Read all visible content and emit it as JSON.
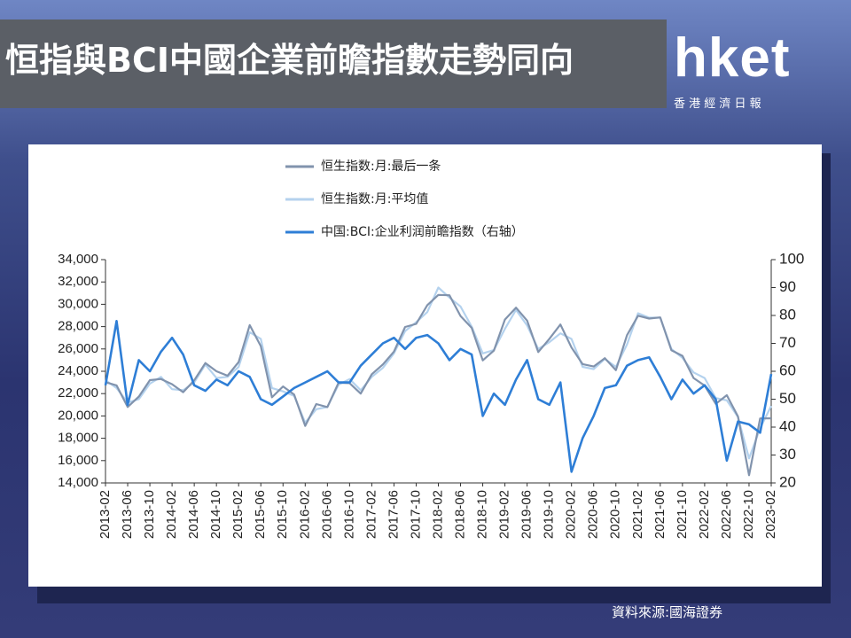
{
  "header": {
    "title": "恒指與BCI中國企業前瞻指數走勢同向",
    "logo": "hket",
    "logo_sub": "香 港 經 濟 日 報"
  },
  "source": "資料來源:國海證券",
  "chart_data": {
    "type": "line",
    "categories": [
      "2013-02",
      null,
      "2013-06",
      null,
      "2013-10",
      null,
      "2014-02",
      null,
      "2014-06",
      null,
      "2014-10",
      null,
      "2015-02",
      null,
      "2015-06",
      null,
      "2015-10",
      null,
      "2016-02",
      null,
      "2016-06",
      null,
      "2016-10",
      null,
      "2017-02",
      null,
      "2017-06",
      null,
      "2017-10",
      null,
      "2018-02",
      null,
      "2018-06",
      null,
      "2018-10",
      null,
      "2019-02",
      null,
      "2019-06",
      null,
      "2019-10",
      null,
      "2020-02",
      null,
      "2020-06",
      null,
      "2020-10",
      null,
      "2021-02",
      null,
      "2021-06",
      null,
      "2021-10",
      null,
      "2022-02",
      null,
      "2022-06",
      null,
      "2022-10",
      null,
      "2023-02"
    ],
    "series": [
      {
        "name": "恒生指数:月:最后一条",
        "color": "#8193ad",
        "values": [
          23020,
          22740,
          20800,
          21730,
          23210,
          23306,
          22840,
          22130,
          23190,
          24740,
          23998,
          23605,
          24823,
          28133,
          26250,
          21670,
          22640,
          21914,
          19111,
          21067,
          20794,
          22977,
          22935,
          22000,
          23741,
          24615,
          25765,
          27970,
          28245,
          29919,
          30845,
          30808,
          28955,
          27889,
          24980,
          25846,
          28633,
          29699,
          28543,
          25725,
          26907,
          28190,
          26130,
          24644,
          24427,
          25177,
          24107,
          27231,
          28980,
          28725,
          28828,
          25879,
          25377,
          23398,
          22713,
          21089,
          21860,
          19954,
          14687,
          19781,
          19786
        ]
      },
      {
        "name": "恒生指数:月:平均值",
        "color": "#b4d2ee",
        "values": [
          23200,
          22500,
          21200,
          21500,
          22900,
          23500,
          22400,
          22300,
          23000,
          24600,
          23400,
          23500,
          24400,
          27500,
          26900,
          22500,
          22200,
          21800,
          19400,
          20600,
          20800,
          22800,
          23300,
          22300,
          23500,
          24300,
          25600,
          27600,
          28400,
          29300,
          31500,
          30600,
          29800,
          28000,
          25600,
          25900,
          27800,
          29500,
          28100,
          26000,
          26600,
          27400,
          26900,
          24400,
          24200,
          25100,
          24400,
          26400,
          29200,
          28800,
          28800,
          26000,
          25200,
          23900,
          23400,
          21600,
          21400,
          19900,
          16200,
          18900,
          20900
        ]
      },
      {
        "name": "中国:BCI:企业利润前瞻指数（右轴）",
        "color": "#2e7ed6",
        "axis": "y2",
        "values": [
          55,
          78,
          48,
          64,
          60,
          67,
          72,
          66,
          55,
          53,
          57,
          55,
          60,
          58,
          50,
          48,
          51,
          54,
          56,
          58,
          60,
          56,
          56,
          62,
          66,
          70,
          72,
          68,
          72,
          73,
          70,
          64,
          68,
          66,
          44,
          52,
          48,
          57,
          64,
          50,
          48,
          56,
          24,
          36,
          44,
          54,
          55,
          62,
          64,
          65,
          58,
          50,
          57,
          52,
          55,
          50,
          28,
          42,
          41,
          38,
          59
        ]
      }
    ],
    "ylim": [
      14000,
      34000
    ],
    "yticks": [
      {
        "value": 14000,
        "label": "14,000"
      },
      {
        "value": 16000,
        "label": "16,000"
      },
      {
        "value": 18000,
        "label": "18,000"
      },
      {
        "value": 20000,
        "label": "20,000"
      },
      {
        "value": 22000,
        "label": "22,000"
      },
      {
        "value": 24000,
        "label": "24,000"
      },
      {
        "value": 26000,
        "label": "26,000"
      },
      {
        "value": 28000,
        "label": "28,000"
      },
      {
        "value": 30000,
        "label": "30,000"
      },
      {
        "value": 32000,
        "label": "32,000"
      },
      {
        "value": 34000,
        "label": "34,000"
      }
    ],
    "y2lim": [
      20,
      100
    ],
    "y2ticks": [
      20,
      30,
      40,
      50,
      60,
      70,
      80,
      90,
      100
    ],
    "legend": "top"
  }
}
